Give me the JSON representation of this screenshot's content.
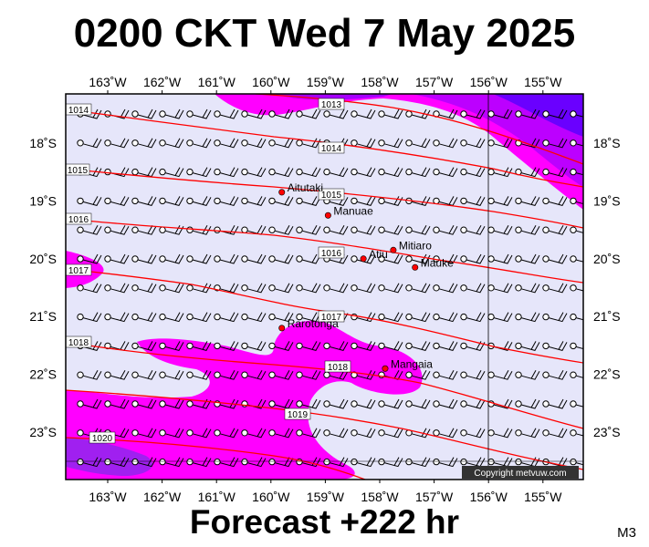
{
  "title": "0200 CKT Wed 7 May 2025",
  "forecast_label": "Forecast +222 hr",
  "model_code": "M3",
  "copyright": "Copyright metvuw.com",
  "lon_labels": [
    "163˚W",
    "162˚W",
    "161˚W",
    "160˚W",
    "159˚W",
    "158˚W",
    "157˚W",
    "156˚W",
    "155˚W"
  ],
  "lat_labels": [
    "18˚S",
    "19˚S",
    "20˚S",
    "21˚S",
    "22˚S",
    "23˚S"
  ],
  "places": [
    {
      "name": "Aitutaki",
      "lon": -159.8,
      "lat": -18.85
    },
    {
      "name": "Manuae",
      "lon": -158.95,
      "lat": -19.25
    },
    {
      "name": "Mitiaro",
      "lon": -157.75,
      "lat": -19.85
    },
    {
      "name": "Atiu",
      "lon": -158.3,
      "lat": -20.0
    },
    {
      "name": "Mauke",
      "lon": -157.35,
      "lat": -20.15
    },
    {
      "name": "Rarotonga",
      "lon": -159.8,
      "lat": -21.2
    },
    {
      "name": "Mangaia",
      "lon": -157.9,
      "lat": -21.9
    }
  ],
  "isobar_labels": [
    "1013",
    "1014",
    "1014",
    "1015",
    "1015",
    "1016",
    "1016",
    "1017",
    "1017",
    "1018",
    "1018",
    "1019",
    "1020"
  ],
  "colors": {
    "background": "#e6e6fa",
    "rain_light": "#ff00ff",
    "rain_heavy": "#8000ff",
    "isobar": "#ff0000",
    "town": "#ff0000"
  }
}
